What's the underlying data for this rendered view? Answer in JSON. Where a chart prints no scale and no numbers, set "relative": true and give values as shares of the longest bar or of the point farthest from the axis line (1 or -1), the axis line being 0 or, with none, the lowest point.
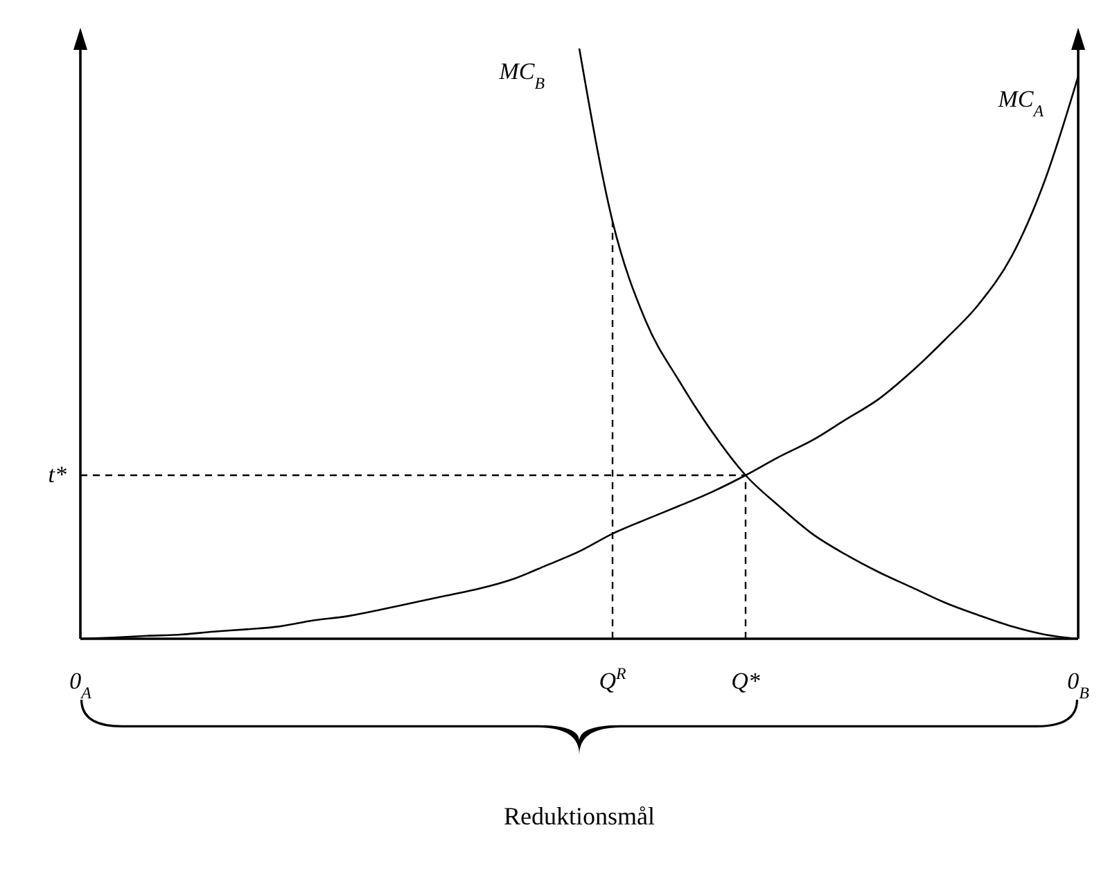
{
  "chart_data": {
    "type": "line",
    "relative": true,
    "xlabel": "Reduktionsmål",
    "categories": [
      "0$_{A}$",
      null,
      null,
      null,
      null,
      null,
      null,
      null,
      null,
      null,
      null,
      null,
      null,
      null,
      null,
      null,
      "Q$^{R}$",
      null,
      null,
      null,
      "Q*",
      null,
      null,
      null,
      null,
      null,
      null,
      null,
      null,
      null,
      "0$_{B}$"
    ],
    "marker": "none",
    "series": [
      {
        "name": "MC$_{B}$",
        "color": "#000000",
        "values": [
          null,
          null,
          null,
          null,
          null,
          null,
          null,
          null,
          null,
          null,
          null,
          null,
          null,
          null,
          null,
          1.0,
          0.707,
          0.538,
          0.437,
          0.35,
          0.277,
          0.225,
          0.178,
          0.143,
          0.113,
          0.087,
          0.061,
          0.04,
          0.021,
          0.007,
          0
        ]
      },
      {
        "name": "MC$_{A}$",
        "color": "#000000",
        "values": [
          0,
          0.002,
          0.005,
          0.007,
          0.012,
          0.016,
          0.021,
          0.031,
          0.038,
          0.049,
          0.061,
          0.073,
          0.085,
          0.101,
          0.124,
          0.148,
          0.178,
          0.202,
          0.225,
          0.249,
          0.277,
          0.308,
          0.336,
          0.371,
          0.406,
          0.453,
          0.507,
          0.566,
          0.648,
          0.777,
          0.953
        ]
      }
    ],
    "ref_lines": [
      {
        "axis": "y",
        "value": 0.277,
        "label": "t*",
        "line_style": "dashed",
        "color": "#000000"
      },
      {
        "axis": "x",
        "value": "Q$^{R}$",
        "line_style": "dashed",
        "color": "#000000"
      },
      {
        "axis": "x",
        "value": "Q*",
        "line_style": "dashed",
        "color": "#000000"
      }
    ]
  }
}
